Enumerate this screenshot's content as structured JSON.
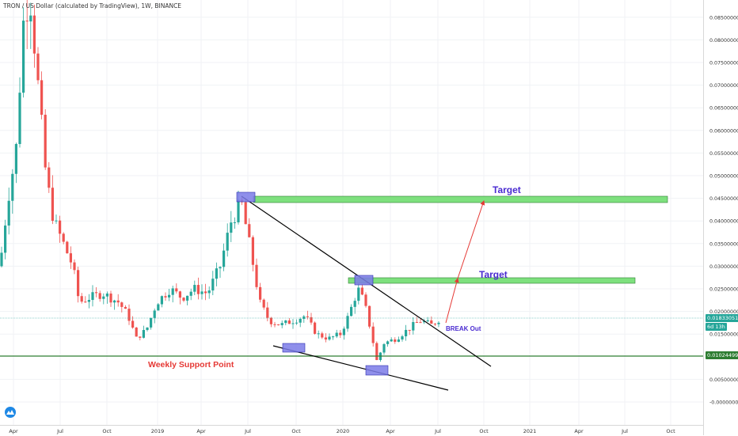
{
  "header": {
    "title": "TRON / US Dollar (calculated by TradingView), 1W, BINANCE"
  },
  "chart_data": {
    "type": "candlestick",
    "symbol": "TRON / US Dollar",
    "interval": "1W",
    "exchange": "BINANCE",
    "y_ticks": [
      "0.08500000",
      "0.08000000",
      "0.07500000",
      "0.07000000",
      "0.06500000",
      "0.06000000",
      "0.05500000",
      "0.05000000",
      "0.04500000",
      "0.04000000",
      "0.03500000",
      "0.03000000",
      "0.02500000",
      "0.02000000",
      "0.01500000",
      "0.00500000",
      "-0.00000000"
    ],
    "x_ticks": [
      "Apr",
      "Jul",
      "Oct",
      "2019",
      "Apr",
      "Jul",
      "Oct",
      "2020",
      "Apr",
      "Jul",
      "Oct",
      "2021",
      "Apr",
      "Jul",
      "Oct"
    ],
    "current_price": "0.01833051",
    "countdown": "6d 13h",
    "support_price": "0.01024499",
    "annotations": {
      "target_upper": "Target",
      "target_lower": "Target",
      "breakout": "BREAK Out",
      "support": "Weekly Support Point"
    },
    "colors": {
      "up": "#26a69a",
      "down": "#ef5350",
      "target_zone": "#7ee07e",
      "support_line": "#2e7d32",
      "box": "#7b7be8",
      "target_text": "#4a2bd1",
      "support_text": "#e53935",
      "arrow": "#e53935"
    }
  }
}
